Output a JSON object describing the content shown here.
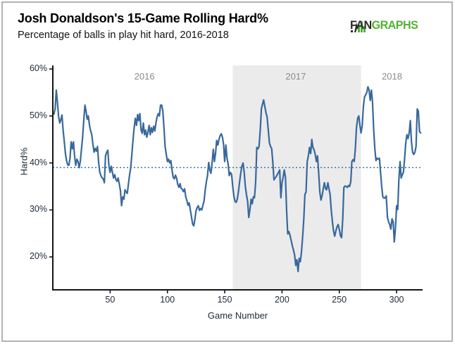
{
  "header": {
    "title": "Josh Donaldson's 15-Game Rolling Hard%",
    "subtitle": "Percentage of balls in play hit hard, 2016-2018"
  },
  "logo": {
    "fan": "FAN",
    "graphs": "GRAPHS",
    "green": "#53b234",
    "dark": "#2b2b2b"
  },
  "chart_data": {
    "type": "line",
    "title": "Josh Donaldson's 15-Game Rolling Hard%",
    "subtitle": "Percentage of balls in play hit hard, 2016-2018",
    "xlabel": "Game Number",
    "ylabel": "Hard%",
    "xlim": [
      0,
      322.7
    ],
    "ylim": [
      13,
      60.75
    ],
    "grid": false,
    "legend": "none",
    "x_ticks": [
      "50",
      "100",
      "150",
      "200",
      "250",
      "300"
    ],
    "x_tick_values": [
      50,
      100,
      150,
      200,
      250,
      300
    ],
    "y_ticks": [
      "60%",
      "50%",
      "40%",
      "30%",
      "20%"
    ],
    "y_tick_values": [
      60,
      50,
      40,
      30,
      20
    ],
    "reference_line": {
      "y": 39,
      "style": "dotted",
      "color": "#3f72a6"
    },
    "shaded_region": {
      "x_from": 157,
      "x_to": 269,
      "color": "#ebebeb",
      "label": "2017 season"
    },
    "annotations": [
      {
        "label": "2016",
        "x": 80,
        "y": 58.3
      },
      {
        "label": "2017",
        "x": 212,
        "y": 58.3
      },
      {
        "label": "2018",
        "x": 296,
        "y": 58.3
      }
    ],
    "line_color": "#38689c",
    "axis_color": "#141414",
    "series": [
      {
        "name": "15-Game Rolling Hard%",
        "x_start": 1,
        "x_step": 1,
        "values": [
          50.4,
          51.5,
          55.5,
          53,
          50,
          48.5,
          49.2,
          50.2,
          47,
          44.5,
          42,
          40.5,
          39.6,
          39.5,
          41,
          44.5,
          43,
          44.5,
          41.5,
          39.5,
          40.8,
          40.3,
          39,
          40.3,
          43,
          45.5,
          49,
          52.3,
          51,
          49.3,
          50,
          48,
          46.8,
          46,
          44,
          42.3,
          43.1,
          42.5,
          43.5,
          40,
          38,
          37.3,
          36.8,
          36.6,
          35.8,
          41.5,
          42.3,
          42.7,
          39.3,
          38,
          39.3,
          38,
          36.8,
          37.5,
          36.5,
          36.1,
          36.8,
          35.5,
          34.1,
          30.9,
          32.8,
          32.3,
          34.3,
          33.8,
          33.5,
          35.6,
          37.5,
          39,
          42,
          45,
          47.5,
          49.5,
          48,
          50.3,
          49,
          50.5,
          47,
          46.3,
          48.5,
          46,
          47,
          45.5,
          46.5,
          48,
          46,
          47.5,
          46.5,
          47.8,
          46.8,
          48.5,
          49.8,
          50.5,
          50,
          52.3,
          52.3,
          51,
          47.5,
          43.5,
          41.8,
          40.3,
          40.8,
          40,
          40.5,
          38.5,
          37,
          36.6,
          37.4,
          36.8,
          35.5,
          34.8,
          35.6,
          34.6,
          34.4,
          33.9,
          34.5,
          32.8,
          32,
          31,
          31.5,
          30,
          28.5,
          27,
          26.6,
          28,
          29.9,
          30.5,
          30.9,
          29.9,
          30.3,
          30,
          31,
          32,
          34.3,
          36,
          37.3,
          40.1,
          38.5,
          37.8,
          40,
          42.9,
          40.3,
          42,
          44.8,
          43.8,
          45,
          45.8,
          46.2,
          45.5,
          44,
          40.3,
          43.8,
          41,
          39.8,
          37.3,
          38,
          37.6,
          35,
          33,
          31.8,
          31.6,
          32.3,
          34,
          36,
          37.8,
          39.3,
          40,
          38,
          35,
          33.3,
          31.8,
          28.4,
          30,
          32.3,
          31.3,
          32.8,
          32.6,
          36,
          43.3,
          43,
          43.5,
          47,
          51.5,
          52.5,
          53.4,
          52,
          50.7,
          49.8,
          47,
          44.3,
          43.5,
          43.1,
          40,
          36.4,
          36.8,
          37.1,
          37.6,
          38,
          38.5,
          32.6,
          35.8,
          37,
          38.5,
          36.9,
          30,
          24.9,
          25.4,
          24.6,
          23.5,
          22.4,
          21.5,
          20.4,
          18.2,
          19.4,
          16.9,
          19.7,
          19,
          21,
          24.3,
          28,
          33.3,
          33.8,
          40.3,
          41.5,
          43.3,
          42,
          45,
          43.3,
          42.8,
          41.8,
          40.3,
          41.5,
          38,
          33.8,
          32.1,
          33,
          34.5,
          35.8,
          34.5,
          34.3,
          35.8,
          34.5,
          33.3,
          30,
          27.4,
          25.5,
          24.4,
          25.5,
          26.4,
          26.9,
          25.9,
          24.5,
          24.1,
          28,
          34.8,
          35.1,
          35,
          34.8,
          35.2,
          35,
          36,
          40.3,
          40.7,
          40.3,
          43,
          47.5,
          49.5,
          50,
          48,
          46.4,
          48,
          52,
          54,
          54.5,
          55,
          56.2,
          55.5,
          53.3,
          55.5,
          53,
          47.3,
          43,
          40.5,
          41,
          40.8,
          41,
          38,
          35,
          32.8,
          32.5,
          32.6,
          33,
          28.4,
          27.5,
          26.9,
          25.9,
          28.1,
          27.5,
          23.2,
          26,
          30.9,
          30.1,
          36.4,
          40.3,
          36.8,
          37.5,
          38,
          41,
          44.3,
          46,
          45.2,
          46.4,
          49,
          44.5,
          42.3,
          41.8,
          42.3,
          43.5,
          51.5,
          51,
          46.7,
          46.4
        ]
      }
    ]
  }
}
